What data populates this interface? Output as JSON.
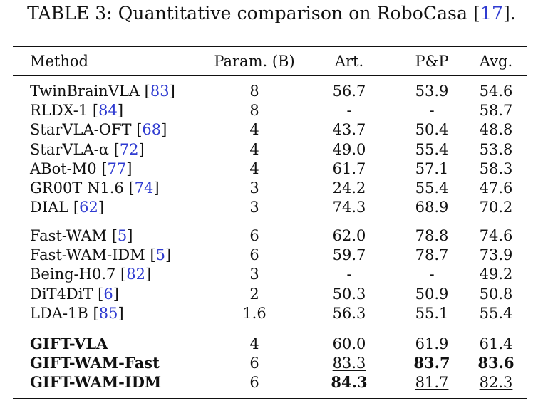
{
  "caption": {
    "prefix": "TABLE 3: Quantitative comparison on RoboCasa [",
    "ref": "17",
    "suffix": "]."
  },
  "headers": {
    "method": "Method",
    "param": "Param. (B)",
    "art": "Art.",
    "pp": "P&P",
    "avg": "Avg."
  },
  "groups": [
    [
      {
        "name": "TwinBrainVLA [",
        "ref": "83",
        "close": "]",
        "param": "8",
        "art": "56.7",
        "pp": "53.9",
        "avg": "54.6"
      },
      {
        "name": "RLDX-1 [",
        "ref": "84",
        "close": "]",
        "param": "8",
        "art": "-",
        "pp": "-",
        "avg": "58.7"
      },
      {
        "name": "StarVLA-OFT [",
        "ref": "68",
        "close": "]",
        "param": "4",
        "art": "43.7",
        "pp": "50.4",
        "avg": "48.8"
      },
      {
        "name": "StarVLA-α [",
        "ref": "72",
        "close": "]",
        "param": "4",
        "art": "49.0",
        "pp": "55.4",
        "avg": "53.8"
      },
      {
        "name": "ABot-M0 [",
        "ref": "77",
        "close": "]",
        "param": "4",
        "art": "61.7",
        "pp": "57.1",
        "avg": "58.3"
      },
      {
        "name": "GR00T N1.6 [",
        "ref": "74",
        "close": "]",
        "param": "3",
        "art": "24.2",
        "pp": "55.4",
        "avg": "47.6"
      },
      {
        "name": "DIAL [",
        "ref": "62",
        "close": "]",
        "param": "3",
        "art": "74.3",
        "pp": "68.9",
        "avg": "70.2"
      }
    ],
    [
      {
        "name": "Fast-WAM [",
        "ref": "5",
        "close": "]",
        "param": "6",
        "art": "62.0",
        "pp": "78.8",
        "avg": "74.6"
      },
      {
        "name": "Fast-WAM-IDM [",
        "ref": "5",
        "close": "]",
        "param": "6",
        "art": "59.7",
        "pp": "78.7",
        "avg": "73.9"
      },
      {
        "name": "Being-H0.7 [",
        "ref": "82",
        "close": "]",
        "param": "3",
        "art": "-",
        "pp": "-",
        "avg": "49.2"
      },
      {
        "name": "DiT4DiT [",
        "ref": "6",
        "close": "]",
        "param": "2",
        "art": "50.3",
        "pp": "50.9",
        "avg": "50.8"
      },
      {
        "name": "LDA-1B [",
        "ref": "85",
        "close": "]",
        "param": "1.6",
        "art": "56.3",
        "pp": "55.1",
        "avg": "55.4"
      }
    ],
    [
      {
        "name": "GIFT-VLA",
        "ref": "",
        "close": "",
        "param": "4",
        "art": "60.0",
        "pp": "61.9",
        "avg": "61.4",
        "bold_name": true
      },
      {
        "name": "GIFT-WAM-Fast",
        "ref": "",
        "close": "",
        "param": "6",
        "art": "83.3",
        "pp": "83.7",
        "avg": "83.6",
        "bold_name": true,
        "art_style": "underline",
        "pp_style": "bold",
        "avg_style": "bold"
      },
      {
        "name": "GIFT-WAM-IDM",
        "ref": "",
        "close": "",
        "param": "6",
        "art": "84.3",
        "pp": "81.7",
        "avg": "82.3",
        "bold_name": true,
        "art_style": "bold",
        "pp_style": "underline",
        "avg_style": "underline"
      }
    ]
  ]
}
